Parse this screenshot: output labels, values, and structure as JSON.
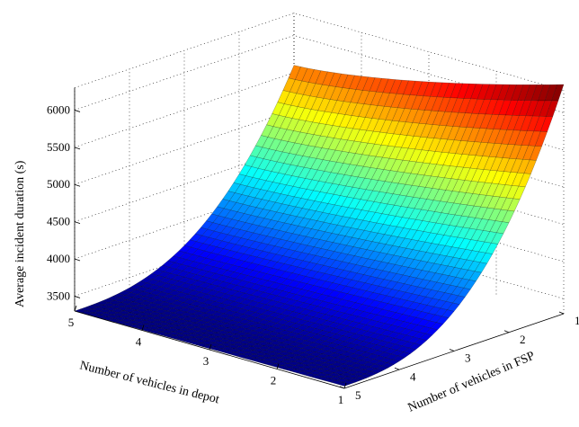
{
  "chart_data": {
    "type": "surface",
    "title": "",
    "xlabel": "Number of vehicles in depot",
    "ylabel": "Number of  vehicles in FSP",
    "zlabel": "Average incident duration (s)",
    "x_ticks": [
      5,
      4,
      3,
      2,
      1
    ],
    "y_ticks": [
      5,
      4,
      3,
      2,
      1
    ],
    "z_ticks": [
      3500,
      4000,
      4500,
      5000,
      5500,
      6000
    ],
    "xlim": [
      1,
      5
    ],
    "ylim": [
      1,
      5
    ],
    "zlim": [
      3300,
      6300
    ],
    "grid": true,
    "colormap": "jet",
    "corner_values": [
      {
        "depot": 5,
        "fsp": 5,
        "duration": 3300
      },
      {
        "depot": 1,
        "fsp": 5,
        "duration": 3330
      },
      {
        "depot": 5,
        "fsp": 1,
        "duration": 5600
      },
      {
        "depot": 1,
        "fsp": 1,
        "duration": 6380
      }
    ]
  }
}
